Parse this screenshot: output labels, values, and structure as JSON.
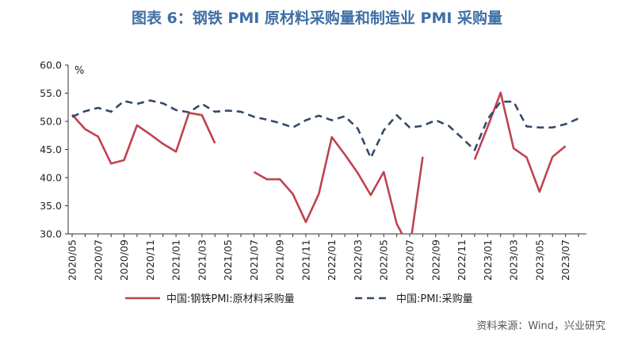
{
  "chart_data": {
    "type": "line",
    "title": "图表 6：钢铁 PMI 原材料采购量和制造业 PMI 采购量",
    "ylabel": "%",
    "ylim": [
      30,
      60
    ],
    "y_ticks": [
      "60.0",
      "55.0",
      "50.0",
      "45.0",
      "40.0",
      "35.0",
      "30.0"
    ],
    "y_tick_values": [
      60,
      55,
      50,
      45,
      40,
      35,
      30
    ],
    "x": [
      "2020/05",
      "2020/06",
      "2020/07",
      "2020/08",
      "2020/09",
      "2020/10",
      "2020/11",
      "2020/12",
      "2021/01",
      "2021/02",
      "2021/03",
      "2021/04",
      "2021/05",
      "2021/06",
      "2021/07",
      "2021/08",
      "2021/09",
      "2021/10",
      "2021/11",
      "2021/12",
      "2022/01",
      "2022/02",
      "2022/03",
      "2022/04",
      "2022/05",
      "2022/06",
      "2022/07",
      "2022/08",
      "2022/09",
      "2022/10",
      "2022/11",
      "2022/12",
      "2023/01",
      "2023/02",
      "2023/03",
      "2023/04",
      "2023/05",
      "2023/06",
      "2023/07",
      "2023/08"
    ],
    "x_tick_labels": [
      "2020/05",
      "2020/07",
      "2020/09",
      "2020/11",
      "2021/01",
      "2021/03",
      "2021/05",
      "2021/07",
      "2021/09",
      "2021/11",
      "2022/01",
      "2022/03",
      "2022/05",
      "2022/07",
      "2022/09",
      "2022/11",
      "2023/01",
      "2023/03",
      "2023/05",
      "2023/07"
    ],
    "series": [
      {
        "name": "中国:钢铁PMI:原材料采购量",
        "color": "#c0434f",
        "style": "solid",
        "values": [
          51.2,
          48.6,
          47.3,
          42.5,
          43.1,
          49.3,
          47.7,
          46.0,
          44.6,
          51.5,
          51.1,
          46.1,
          null,
          null,
          41.0,
          39.7,
          39.7,
          37.1,
          32.1,
          37.1,
          47.2,
          44.1,
          40.8,
          36.9,
          41.0,
          31.8,
          27.4,
          43.7,
          null,
          null,
          null,
          43.2,
          49.0,
          55.1,
          45.2,
          43.6,
          37.5,
          43.7,
          45.6,
          null
        ]
      },
      {
        "name": "中国:PMI:采购量",
        "color": "#34496a",
        "style": "dashed",
        "values": [
          50.8,
          51.8,
          52.4,
          51.7,
          53.6,
          53.1,
          53.7,
          53.2,
          52.0,
          51.6,
          53.1,
          51.7,
          51.9,
          51.7,
          50.8,
          50.3,
          49.7,
          48.9,
          50.2,
          51.0,
          50.2,
          50.9,
          48.7,
          43.5,
          48.4,
          51.1,
          48.9,
          49.2,
          50.2,
          49.2,
          47.1,
          44.9,
          50.4,
          53.5,
          53.5,
          49.1,
          48.9,
          48.9,
          49.5,
          50.5
        ]
      }
    ],
    "legend_position": "bottom",
    "grid": false
  },
  "source": "资料来源：Wind，兴业研究"
}
